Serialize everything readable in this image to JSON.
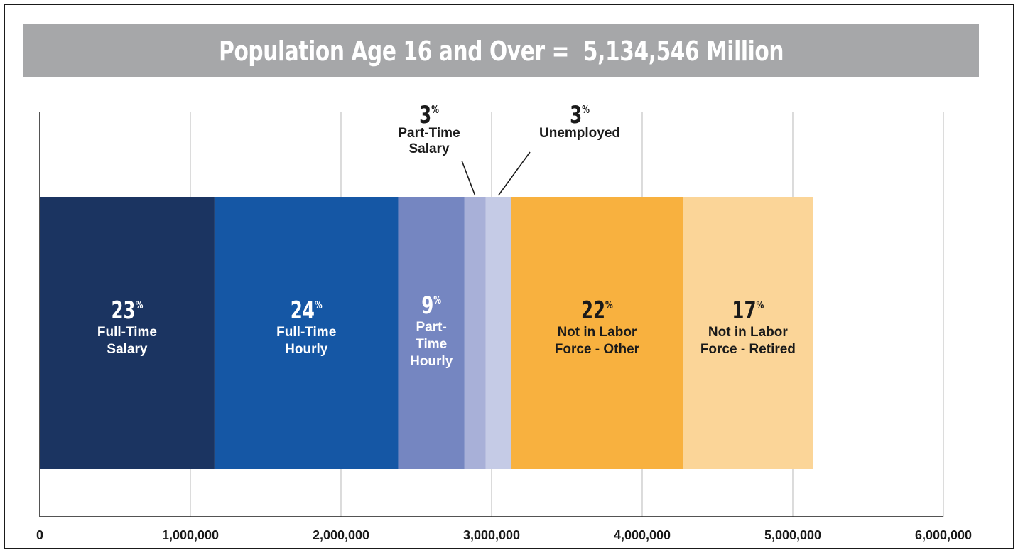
{
  "chart_data": {
    "type": "bar",
    "orientation": "horizontal-stacked",
    "title": "Population Age 16 and Over =  5,134,546 Million",
    "xlim": [
      0,
      6000000
    ],
    "x_ticks": [
      "0",
      "1,000,000",
      "2,000,000",
      "3,000,000",
      "4,000,000",
      "5,000,000",
      "6,000,000"
    ],
    "grid": true,
    "series": [
      {
        "name": "Full-Time Salary",
        "label_lines": [
          "Full-Time",
          "Salary"
        ],
        "percent": "23",
        "start": 0,
        "end": 1160000,
        "color": "#1b3461",
        "text_color": "#ffffff"
      },
      {
        "name": "Full-Time Hourly",
        "label_lines": [
          "Full-Time",
          "Hourly"
        ],
        "percent": "24",
        "start": 1160000,
        "end": 2380000,
        "color": "#1557a5",
        "text_color": "#ffffff"
      },
      {
        "name": "Part-Time Hourly",
        "label_lines": [
          "Part-",
          "Time",
          "Hourly"
        ],
        "percent": "9",
        "start": 2380000,
        "end": 2820000,
        "color": "#7586c1",
        "text_color": "#ffffff"
      },
      {
        "name": "Part-Time Salary",
        "label_lines": [
          "Part-Time",
          "Salary"
        ],
        "percent": "3",
        "start": 2820000,
        "end": 2960000,
        "color": "#a8b0d8",
        "text_color": "#1a1a1a",
        "callout": true
      },
      {
        "name": "Unemployed",
        "label_lines": [
          "Unemployed"
        ],
        "percent": "3",
        "start": 2960000,
        "end": 3130000,
        "color": "#c5cbe6",
        "text_color": "#1a1a1a",
        "callout": true
      },
      {
        "name": "Not in Labor Force - Other",
        "label_lines": [
          "Not in Labor",
          "Force - Other"
        ],
        "percent": "22",
        "start": 3130000,
        "end": 4270000,
        "color": "#f8b13f",
        "text_color": "#1a1a1a"
      },
      {
        "name": "Not in Labor Force - Retired",
        "label_lines": [
          "Not in Labor",
          "Force - Retired"
        ],
        "percent": "17",
        "start": 4270000,
        "end": 5134546,
        "color": "#fbd598",
        "text_color": "#1a1a1a"
      }
    ],
    "percent_sign": "%"
  }
}
